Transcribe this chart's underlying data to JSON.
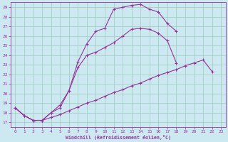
{
  "xlabel": "Windchill (Refroidissement éolien,°C)",
  "bg_color": "#cce8f0",
  "line_color": "#993399",
  "grid_color": "#99ccbb",
  "xlim_min": -0.5,
  "xlim_max": 23.5,
  "ylim_min": 16.5,
  "ylim_max": 29.5,
  "yticks": [
    17,
    18,
    19,
    20,
    21,
    22,
    23,
    24,
    25,
    26,
    27,
    28,
    29
  ],
  "xticks": [
    0,
    1,
    2,
    3,
    4,
    5,
    6,
    7,
    8,
    9,
    10,
    11,
    12,
    13,
    14,
    15,
    16,
    17,
    18,
    19,
    20,
    21,
    22,
    23
  ],
  "line1_x": [
    0,
    1,
    2,
    3,
    4,
    5,
    6,
    7,
    8,
    9,
    10,
    11,
    12,
    13,
    14,
    15,
    16,
    17,
    18,
    19,
    20,
    21,
    22
  ],
  "line1_y": [
    18.5,
    17.7,
    17.2,
    17.2,
    17.5,
    17.8,
    18.2,
    18.6,
    19.0,
    19.3,
    19.7,
    20.1,
    20.4,
    20.8,
    21.1,
    21.5,
    21.9,
    22.2,
    22.5,
    22.9,
    23.2,
    23.5,
    22.3
  ],
  "line2_x": [
    0,
    1,
    2,
    3,
    4,
    5,
    6,
    7,
    8,
    9,
    10,
    11,
    12,
    13,
    14,
    15,
    16,
    17,
    18
  ],
  "line2_y": [
    18.5,
    17.7,
    17.2,
    17.2,
    18.0,
    18.8,
    20.3,
    22.7,
    24.0,
    24.3,
    24.8,
    25.3,
    26.0,
    26.7,
    26.8,
    26.7,
    26.3,
    25.5,
    23.2
  ],
  "line3_x": [
    0,
    1,
    2,
    3,
    4,
    5,
    6,
    7,
    8,
    9,
    10,
    11,
    12,
    13,
    14,
    15,
    16,
    17,
    18
  ],
  "line3_y": [
    18.5,
    17.7,
    17.2,
    17.2,
    18.0,
    18.5,
    20.3,
    23.3,
    25.2,
    26.5,
    26.8,
    28.8,
    29.0,
    29.2,
    29.3,
    28.8,
    28.5,
    27.3,
    26.5
  ]
}
